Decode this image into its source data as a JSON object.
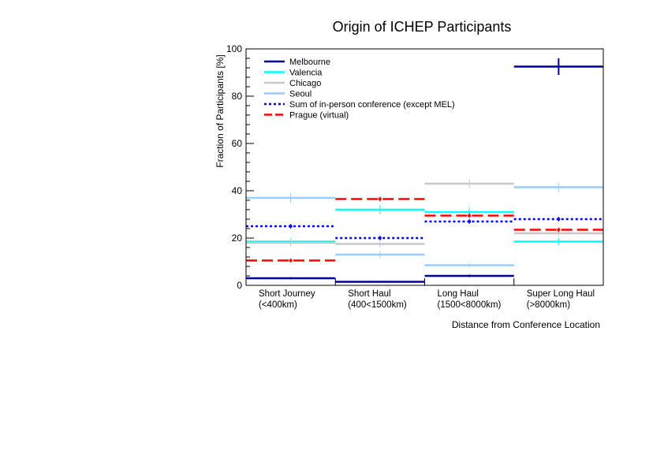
{
  "chart_data": {
    "type": "bar",
    "title": "Origin of ICHEP Participants",
    "xlabel": "Distance from Conference Location",
    "ylabel": "Fraction of Participants [%]",
    "ylim": [
      0,
      100
    ],
    "yticks": [
      "0",
      "20",
      "40",
      "60",
      "80",
      "100"
    ],
    "categories": [
      [
        "Short Journey",
        "(<400km)"
      ],
      [
        "Short Haul",
        "(400<1500km)"
      ],
      [
        "Long Haul",
        "(1500<8000km)"
      ],
      [
        "Super Long Haul",
        "(>8000km)"
      ]
    ],
    "series": [
      {
        "name": "Melbourne",
        "color": "#000099",
        "style": "solid",
        "values": [
          3,
          1.5,
          4,
          92.5
        ],
        "errors": [
          0.5,
          0.4,
          0.6,
          3.5
        ]
      },
      {
        "name": "Valencia",
        "color": "#00ffff",
        "style": "solid",
        "values": [
          18.5,
          32,
          31,
          18.5
        ],
        "errors": [
          1.5,
          2,
          2,
          1.5
        ]
      },
      {
        "name": "Chicago",
        "color": "#c8c8c8",
        "style": "solid",
        "values": [
          18,
          17.5,
          43,
          22
        ],
        "errors": [
          1.5,
          1.5,
          2,
          1.5
        ]
      },
      {
        "name": "Seoul",
        "color": "#99ccff",
        "style": "solid",
        "values": [
          37,
          13,
          8.5,
          41.5
        ],
        "errors": [
          2,
          1.5,
          1,
          2
        ]
      },
      {
        "name": "Sum of in-person conference (except MEL)",
        "color": "#0000ff",
        "style": "dotted",
        "values": [
          25,
          20,
          27,
          28
        ],
        "errors": [
          1,
          1,
          1,
          1
        ]
      },
      {
        "name": "Prague (virtual)",
        "color": "#ff0000",
        "style": "dashed",
        "values": [
          10.5,
          36.5,
          29.5,
          23.5
        ],
        "errors": [
          0.8,
          1,
          1,
          1
        ]
      }
    ],
    "legend_position": "top-left",
    "grid": false
  }
}
